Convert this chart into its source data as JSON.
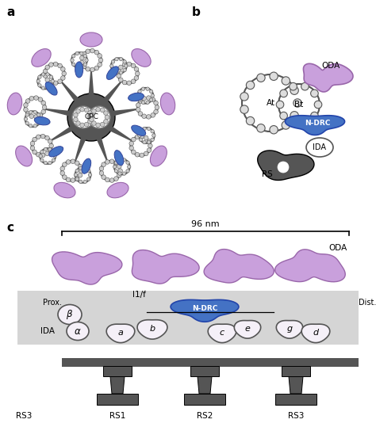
{
  "fig_width": 4.74,
  "fig_height": 5.39,
  "dpi": 100,
  "bg_color": "#ffffff",
  "color_dark": "#555555",
  "color_blue": "#4472C4",
  "color_purple": "#C9A0DC",
  "color_purple_edge": "#9966aa",
  "color_blue_edge": "#2244aa",
  "panel_a_label": "a",
  "panel_b_label": "b",
  "panel_c_label": "c",
  "cpc_label": "CPC",
  "oda_label": "ODA",
  "ndrc_label": "N-DRC",
  "ida_label": "IDA",
  "rs_label": "RS",
  "bt_label": "Bt",
  "at_label": "At",
  "nm96_label": "96 nm",
  "prox_label": "Prox.",
  "dist_label": "Dist.",
  "i1f_label": "I1/f",
  "rs1_label": "RS1",
  "rs2_label": "RS2",
  "rs3_label": "RS3",
  "rs3_left_label": "RS3"
}
